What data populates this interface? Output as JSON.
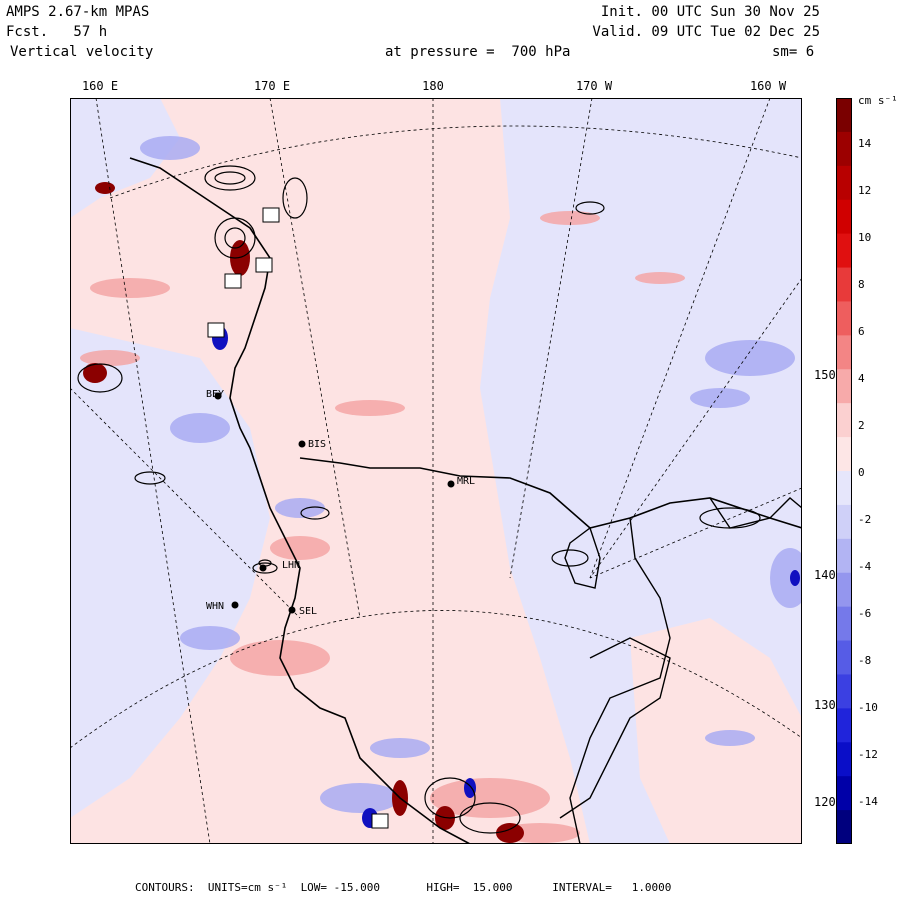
{
  "header": {
    "model": "AMPS 2.67-km MPAS",
    "forecast": "Fcst.   57 h",
    "field": "Vertical velocity",
    "init": "Init. 00 UTC Sun 30 Nov 25",
    "valid": "Valid. 09 UTC Tue 02 Dec 25",
    "level": "at pressure =  700 hPa",
    "smoothing": "sm= 6"
  },
  "longitude_labels": [
    "160 E",
    "170 E",
    "180",
    "170 W",
    "160 W"
  ],
  "latitude_labels": [
    "150 W",
    "140 W",
    "130 W",
    "120 W"
  ],
  "stations": [
    "BEY",
    "BIS",
    "MRL",
    "LHN",
    "WHN",
    "SEL"
  ],
  "colorbar": {
    "unit": "cm s⁻¹",
    "ticks": [
      "14",
      "12",
      "10",
      "8",
      "6",
      "4",
      "2",
      "0",
      "-2",
      "-4",
      "-6",
      "-8",
      "-10",
      "-12",
      "-14"
    ],
    "colors": [
      "#7a0000",
      "#9c0000",
      "#b80000",
      "#d00000",
      "#e01010",
      "#e83a3a",
      "#ee5e5e",
      "#f38585",
      "#f7aaaa",
      "#fbd0d0",
      "#fde6e6",
      "#e6e6fb",
      "#cfd0f8",
      "#b2b4f3",
      "#9496ee",
      "#7579ea",
      "#565ce6",
      "#3b40e2",
      "#2024db",
      "#0a0ec8",
      "#0000a8",
      "#00007e"
    ]
  },
  "footer": {
    "contours": "CONTOURS:  UNITS=cm s⁻¹  LOW= -15.000       HIGH=  15.000      INTERVAL=   1.0000"
  },
  "colors": {
    "ascent_light": "#fde3e3",
    "descent_light": "#e4e4fb",
    "ascent_mid": "#f4a6a6",
    "descent_mid": "#a9acf2",
    "ascent_strong": "#8b0000",
    "descent_strong": "#1010c0"
  }
}
